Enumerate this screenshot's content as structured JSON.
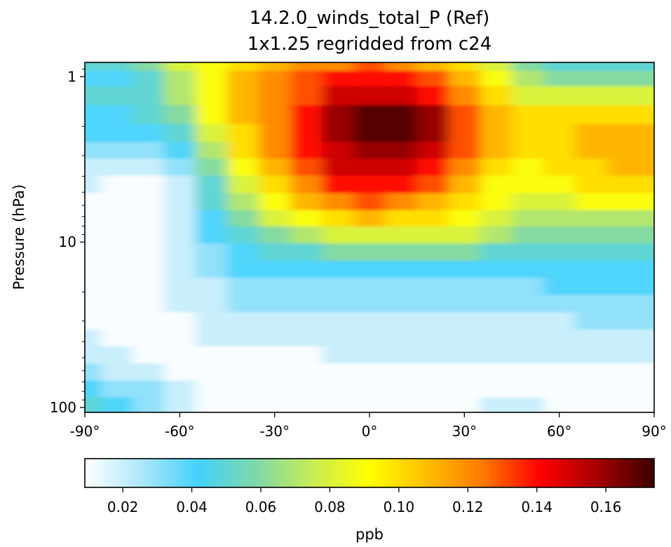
{
  "chart_data": {
    "type": "heatmap",
    "title": "14.2.0_winds_total_P (Ref)",
    "subtitle": "1x1.25 regridded from c24",
    "xlabel": "",
    "ylabel": "Pressure (hPa)",
    "x_scale": "linear",
    "y_scale": "log",
    "y_inverted": true,
    "xlim": [
      -90,
      90
    ],
    "ylim": [
      107,
      0.82
    ],
    "x_ticks": [
      -90,
      -60,
      -30,
      0,
      30,
      60,
      90
    ],
    "x_tick_labels": [
      "-90°",
      "-60°",
      "-30°",
      "0°",
      "30°",
      "60°",
      "90°"
    ],
    "y_ticks": [
      1,
      10,
      100
    ],
    "y_tick_labels": [
      "1",
      "10",
      "100"
    ],
    "colorbar": {
      "label": "ppb",
      "vmin": 0.009,
      "vmax": 0.174,
      "ticks": [
        0.02,
        0.04,
        0.06,
        0.08,
        0.1,
        0.12,
        0.14,
        0.16
      ],
      "tick_labels": [
        "0.02",
        "0.04",
        "0.06",
        "0.08",
        "0.10",
        "0.12",
        "0.14",
        "0.16"
      ],
      "colormap_stops": [
        "#ffffff",
        "#aee6fa",
        "#43d2fb",
        "#7ed8a8",
        "#c8ec55",
        "#ffff00",
        "#ffbe00",
        "#ff7800",
        "#ff0000",
        "#a60000",
        "#3c0000"
      ]
    },
    "lat": [
      -90,
      -80,
      -70,
      -60,
      -50,
      -40,
      -30,
      -20,
      -10,
      0,
      10,
      20,
      30,
      40,
      50,
      60,
      70,
      80,
      90
    ],
    "pressure": [
      0.85,
      1.0,
      1.3,
      1.7,
      2.2,
      2.8,
      3.5,
      4.5,
      5.7,
      7.2,
      9.0,
      11.5,
      14.6,
      18.5,
      23.5,
      30,
      38,
      48,
      61,
      77,
      98
    ],
    "values": [
      [
        0.05,
        0.05,
        0.06,
        0.08,
        0.09,
        0.1,
        0.11,
        0.12,
        0.12,
        0.13,
        0.12,
        0.11,
        0.1,
        0.08,
        0.06,
        0.05,
        0.05,
        0.05,
        0.05
      ],
      [
        0.04,
        0.04,
        0.05,
        0.07,
        0.09,
        0.11,
        0.12,
        0.13,
        0.14,
        0.14,
        0.14,
        0.13,
        0.11,
        0.09,
        0.07,
        0.06,
        0.06,
        0.06,
        0.06
      ],
      [
        0.05,
        0.05,
        0.05,
        0.07,
        0.09,
        0.11,
        0.12,
        0.13,
        0.15,
        0.15,
        0.15,
        0.14,
        0.12,
        0.1,
        0.08,
        0.08,
        0.08,
        0.08,
        0.08
      ],
      [
        0.04,
        0.04,
        0.05,
        0.06,
        0.09,
        0.11,
        0.12,
        0.14,
        0.16,
        0.17,
        0.17,
        0.16,
        0.13,
        0.11,
        0.1,
        0.1,
        0.1,
        0.1,
        0.1
      ],
      [
        0.04,
        0.04,
        0.04,
        0.05,
        0.08,
        0.1,
        0.12,
        0.14,
        0.16,
        0.17,
        0.17,
        0.16,
        0.13,
        0.11,
        0.1,
        0.1,
        0.11,
        0.11,
        0.11
      ],
      [
        0.03,
        0.03,
        0.03,
        0.04,
        0.07,
        0.1,
        0.12,
        0.14,
        0.15,
        0.16,
        0.16,
        0.15,
        0.13,
        0.11,
        0.1,
        0.1,
        0.11,
        0.11,
        0.11
      ],
      [
        0.02,
        0.02,
        0.02,
        0.03,
        0.06,
        0.09,
        0.11,
        0.13,
        0.15,
        0.15,
        0.15,
        0.14,
        0.12,
        0.1,
        0.09,
        0.1,
        0.1,
        0.11,
        0.11
      ],
      [
        0.02,
        0.01,
        0.01,
        0.02,
        0.05,
        0.08,
        0.1,
        0.12,
        0.14,
        0.14,
        0.14,
        0.13,
        0.11,
        0.09,
        0.09,
        0.09,
        0.1,
        0.1,
        0.1
      ],
      [
        0.01,
        0.01,
        0.01,
        0.02,
        0.05,
        0.07,
        0.09,
        0.11,
        0.12,
        0.13,
        0.12,
        0.11,
        0.1,
        0.09,
        0.08,
        0.08,
        0.09,
        0.09,
        0.09
      ],
      [
        0.01,
        0.01,
        0.01,
        0.02,
        0.04,
        0.06,
        0.08,
        0.09,
        0.1,
        0.11,
        0.1,
        0.1,
        0.09,
        0.08,
        0.07,
        0.07,
        0.07,
        0.07,
        0.07
      ],
      [
        0.01,
        0.01,
        0.01,
        0.02,
        0.04,
        0.05,
        0.06,
        0.07,
        0.08,
        0.08,
        0.08,
        0.08,
        0.08,
        0.07,
        0.06,
        0.06,
        0.06,
        0.06,
        0.06
      ],
      [
        0.01,
        0.01,
        0.01,
        0.02,
        0.03,
        0.04,
        0.05,
        0.05,
        0.06,
        0.06,
        0.06,
        0.06,
        0.06,
        0.05,
        0.05,
        0.05,
        0.05,
        0.05,
        0.05
      ],
      [
        0.01,
        0.01,
        0.01,
        0.02,
        0.03,
        0.04,
        0.04,
        0.04,
        0.04,
        0.04,
        0.04,
        0.04,
        0.04,
        0.04,
        0.04,
        0.04,
        0.04,
        0.04,
        0.04
      ],
      [
        0.01,
        0.01,
        0.01,
        0.02,
        0.02,
        0.03,
        0.03,
        0.03,
        0.03,
        0.03,
        0.03,
        0.03,
        0.03,
        0.03,
        0.03,
        0.04,
        0.04,
        0.04,
        0.04
      ],
      [
        0.01,
        0.01,
        0.01,
        0.02,
        0.02,
        0.03,
        0.03,
        0.03,
        0.03,
        0.03,
        0.03,
        0.03,
        0.03,
        0.03,
        0.03,
        0.03,
        0.03,
        0.03,
        0.03
      ],
      [
        0.01,
        0.01,
        0.01,
        0.01,
        0.02,
        0.02,
        0.02,
        0.02,
        0.02,
        0.02,
        0.02,
        0.02,
        0.02,
        0.02,
        0.02,
        0.02,
        0.03,
        0.03,
        0.03
      ],
      [
        0.02,
        0.01,
        0.01,
        0.01,
        0.02,
        0.02,
        0.02,
        0.02,
        0.02,
        0.02,
        0.02,
        0.02,
        0.02,
        0.02,
        0.02,
        0.02,
        0.02,
        0.02,
        0.02
      ],
      [
        0.02,
        0.02,
        0.01,
        0.01,
        0.01,
        0.01,
        0.01,
        0.01,
        0.02,
        0.02,
        0.02,
        0.02,
        0.02,
        0.02,
        0.02,
        0.02,
        0.02,
        0.02,
        0.02
      ],
      [
        0.03,
        0.02,
        0.02,
        0.01,
        0.01,
        0.01,
        0.01,
        0.01,
        0.01,
        0.01,
        0.01,
        0.01,
        0.01,
        0.01,
        0.01,
        0.01,
        0.01,
        0.01,
        0.01
      ],
      [
        0.04,
        0.03,
        0.03,
        0.02,
        0.01,
        0.01,
        0.01,
        0.01,
        0.01,
        0.01,
        0.01,
        0.01,
        0.01,
        0.01,
        0.01,
        0.01,
        0.01,
        0.01,
        0.01
      ],
      [
        0.05,
        0.04,
        0.03,
        0.02,
        0.01,
        0.01,
        0.01,
        0.01,
        0.01,
        0.01,
        0.01,
        0.01,
        0.01,
        0.02,
        0.02,
        0.01,
        0.01,
        0.01,
        0.01
      ]
    ]
  }
}
